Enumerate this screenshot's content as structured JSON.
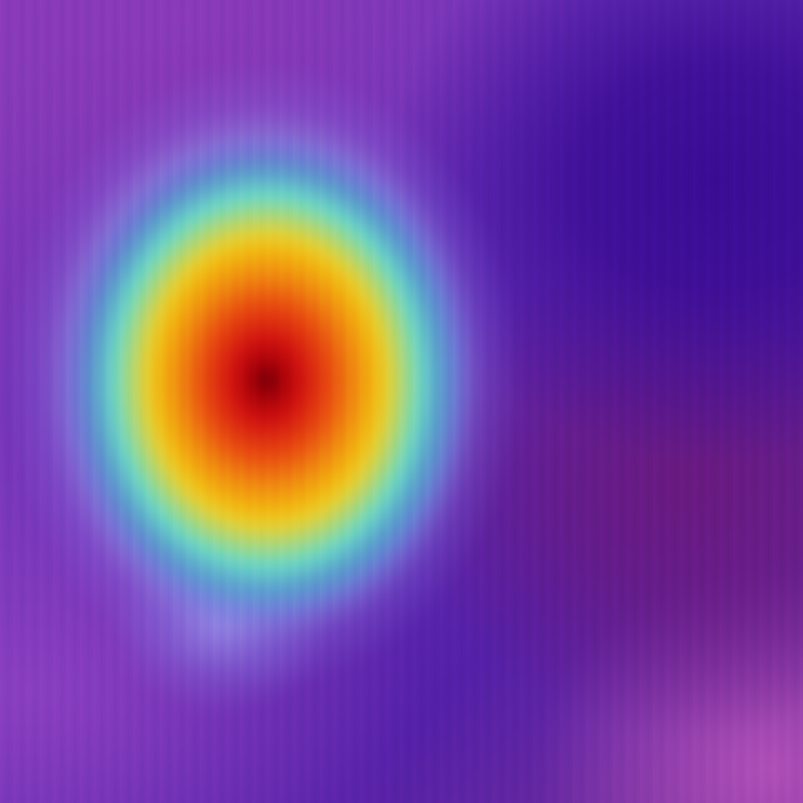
{
  "image": {
    "kind": "heatmap-overlay",
    "colors": {
      "background": "#5a2aa0",
      "indigo_region": "#3a0c95",
      "magenta_region": "#6a1a80",
      "halo": "#96a0eb",
      "heat_cyan": "#6ad8c8",
      "heat_yellow": "#f2b810",
      "heat_orange": "#e84a10",
      "heat_red": "#d01010",
      "heat_core": "#6a0008"
    }
  }
}
